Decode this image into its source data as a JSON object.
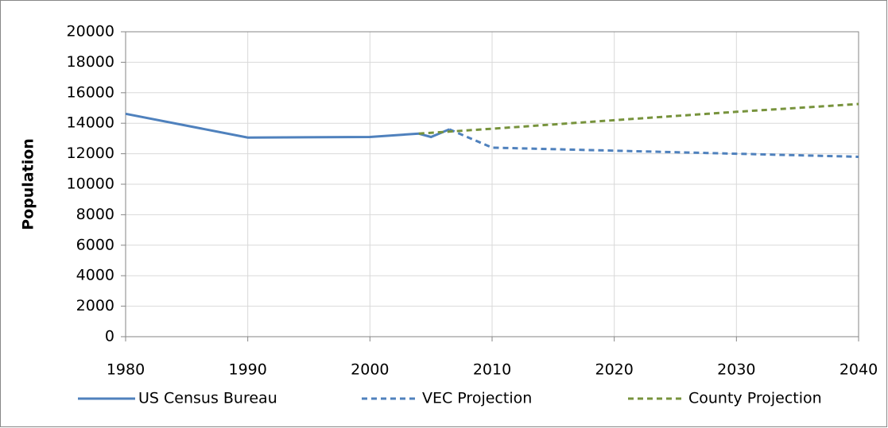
{
  "chart_data": {
    "type": "line",
    "ylabel": "Population",
    "xlim": [
      1980,
      2040
    ],
    "xticks": [
      1980,
      1990,
      2000,
      2010,
      2020,
      2030,
      2040
    ],
    "ylim": [
      0,
      20000
    ],
    "yticks": [
      0,
      2000,
      4000,
      6000,
      8000,
      10000,
      12000,
      14000,
      16000,
      18000,
      20000
    ],
    "grid": true,
    "legend": "bottom",
    "series": [
      {
        "name": "US Census Bureau",
        "color": "#4f81bd",
        "dash": false,
        "x": [
          1980,
          1990,
          2000,
          2004,
          2005,
          2006.5
        ],
        "values": [
          14620,
          13060,
          13100,
          13320,
          13100,
          13600
        ]
      },
      {
        "name": "VEC Projection",
        "color": "#4f81bd",
        "dash": true,
        "x": [
          2006.5,
          2010,
          2020,
          2030,
          2040
        ],
        "values": [
          13600,
          12400,
          12200,
          12000,
          11800
        ]
      },
      {
        "name": "County Projection",
        "color": "#77933c",
        "dash": true,
        "x": [
          2004,
          2010,
          2020,
          2030,
          2040
        ],
        "values": [
          13320,
          13640,
          14200,
          14750,
          15260
        ]
      }
    ]
  }
}
